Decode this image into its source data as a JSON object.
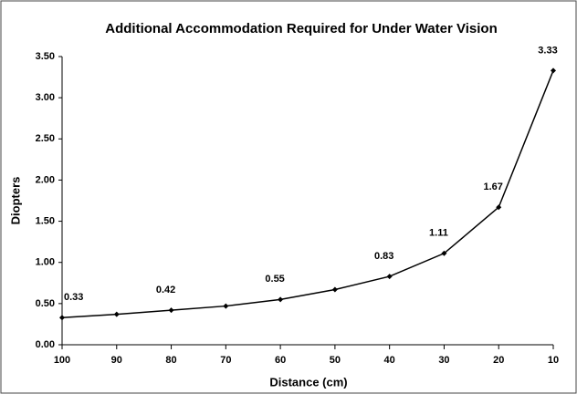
{
  "chart_data": {
    "type": "line",
    "title": "Additional Accommodation Required for Under Water Vision",
    "x_label": "Distance (cm)",
    "y_label": "Diopters",
    "x": [
      100,
      90,
      80,
      70,
      60,
      50,
      40,
      30,
      20,
      10
    ],
    "series": [
      {
        "name": "Diopters",
        "color": "#000000",
        "values": [
          0.33,
          0.37,
          0.42,
          0.47,
          0.55,
          0.67,
          0.83,
          1.11,
          1.67,
          3.33
        ],
        "value_labels": [
          "0.33",
          null,
          "0.42",
          null,
          "0.55",
          null,
          "0.83",
          "1.11",
          "1.67",
          "3.33"
        ]
      }
    ],
    "xlim": [
      100,
      10
    ],
    "xticks": [
      100,
      90,
      80,
      70,
      60,
      50,
      40,
      30,
      20,
      10
    ],
    "ylim": [
      0,
      3.5
    ],
    "yticks": [
      {
        "value": 0,
        "label": "0.00"
      },
      {
        "value": 0.5,
        "label": "0.50"
      },
      {
        "value": 1,
        "label": "1.00"
      },
      {
        "value": 1.5,
        "label": "1.50"
      },
      {
        "value": 2,
        "label": "2.00"
      },
      {
        "value": 2.5,
        "label": "2.50"
      },
      {
        "value": 3,
        "label": "3.00"
      },
      {
        "value": 3.5,
        "label": "3.50"
      }
    ],
    "grid": false
  }
}
